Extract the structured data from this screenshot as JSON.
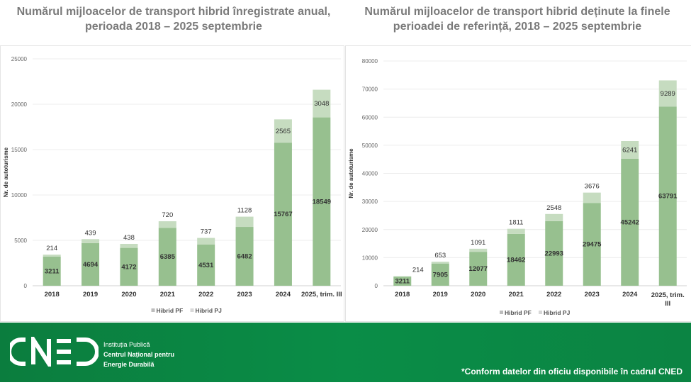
{
  "colors": {
    "pf": "#97c08f",
    "pj": "#c6dcc0",
    "footer": "#0a8a45"
  },
  "chart_data": [
    {
      "type": "bar",
      "stacked": true,
      "title": "Numărul mijloacelor de transport hibrid înregistrate anual,  perioada 2018 – 2025 septembrie",
      "ylabel": "Nr. de autoturisme",
      "xlabel": "",
      "ylim": [
        0,
        25000
      ],
      "yticks": [
        0,
        5000,
        10000,
        15000,
        20000,
        25000
      ],
      "grid": true,
      "legend": "bottom",
      "categories": [
        "2018",
        "2019",
        "2020",
        "2021",
        "2022",
        "2023",
        "2024",
        "2025, trim. III"
      ],
      "series": [
        {
          "name": "Hibrid PF",
          "values": [
            3211,
            4694,
            4172,
            6385,
            4531,
            6482,
            15767,
            18549
          ]
        },
        {
          "name": "Hibrid PJ",
          "values": [
            214,
            439,
            438,
            720,
            737,
            1128,
            2565,
            3048
          ]
        }
      ]
    },
    {
      "type": "bar",
      "stacked": true,
      "title": "Numărul mijloacelor de transport hibrid deținute la finele perioadei de referință, 2018 – 2025 septembrie",
      "ylabel": "Nr. de autoturisme",
      "xlabel": "",
      "ylim": [
        0,
        80000
      ],
      "yticks": [
        0,
        10000,
        20000,
        30000,
        40000,
        50000,
        60000,
        70000,
        80000
      ],
      "grid": true,
      "legend": "bottom",
      "categories": [
        "2018",
        "2019",
        "2020",
        "2021",
        "2022",
        "2023",
        "2024",
        "2025, trim. III"
      ],
      "series": [
        {
          "name": "Hibrid PF",
          "values": [
            3211,
            7905,
            12077,
            18462,
            22993,
            29475,
            45242,
            63791
          ]
        },
        {
          "name": "Hibrid PJ",
          "values": [
            214,
            653,
            1091,
            1811,
            2548,
            3676,
            6241,
            9289
          ]
        }
      ]
    }
  ],
  "footer": {
    "logo_text": "CNED",
    "institution_line1": "Instituția Publică",
    "institution_line2": "Centrul Național pentru",
    "institution_line3": "Energie Durabilă",
    "note": "*Conform datelor din oficiu disponibile în cadrul CNED"
  }
}
